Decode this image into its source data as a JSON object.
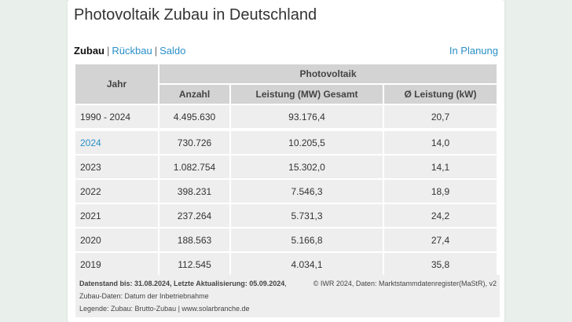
{
  "title": "Photovoltaik Zubau in Deutschland",
  "tabs": {
    "active": "Zubau",
    "rueckbau": "Rückbau",
    "saldo": "Saldo",
    "separator": "|"
  },
  "planung_link": "In Planung",
  "table": {
    "group_header": "Photovoltaik",
    "headers": {
      "jahr": "Jahr",
      "anzahl": "Anzahl",
      "leistung": "Leistung (MW) Gesamt",
      "avg": "Ø Leistung (kW)"
    },
    "total": {
      "jahr": "1990 - 2024",
      "anzahl": "4.495.630",
      "leistung": "93.176,4",
      "avg": "20,7"
    },
    "rows": [
      {
        "jahr": "2024",
        "anzahl": "730.726",
        "leistung": "10.205,5",
        "avg": "14,0"
      },
      {
        "jahr": "2023",
        "anzahl": "1.082.754",
        "leistung": "15.302,0",
        "avg": "14,1"
      },
      {
        "jahr": "2022",
        "anzahl": "398.231",
        "leistung": "7.546,3",
        "avg": "18,9"
      },
      {
        "jahr": "2021",
        "anzahl": "237.264",
        "leistung": "5.731,3",
        "avg": "24,2"
      },
      {
        "jahr": "2020",
        "anzahl": "188.563",
        "leistung": "5.166,8",
        "avg": "27,4"
      },
      {
        "jahr": "2019",
        "anzahl": "112.545",
        "leistung": "4.034,1",
        "avg": "35,8"
      }
    ]
  },
  "footer": {
    "datenstand": "Datenstand bis: 31.08.2024, Letzte Aktualisierung: 05.09.2024",
    "datenstand_suffix": ",",
    "copyright": "© IWR 2024, Daten: Marktstammdatenregister(MaStR), v2",
    "zubau_daten": "Zubau-Daten: Datum der Inbetriebnahme",
    "legende": "Legende: Zubau: Brutto-Zubau | www.solarbranche.de"
  },
  "colors": {
    "link": "#2a8fc8",
    "header_bg": "#d3d3d3",
    "cell_bg": "#eeeeee",
    "page_bg": "#e9efea"
  }
}
